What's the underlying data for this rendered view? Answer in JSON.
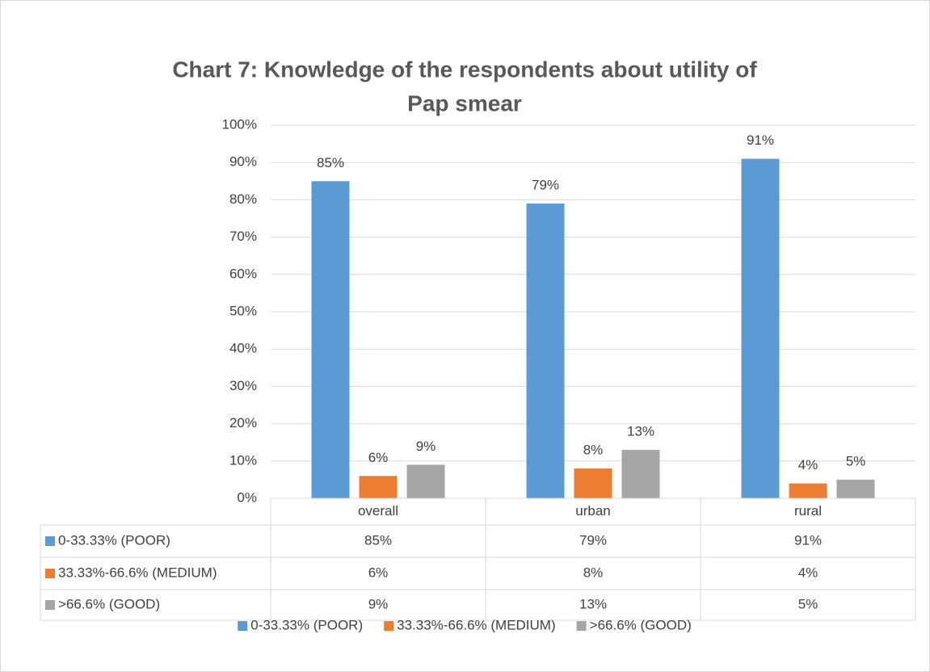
{
  "chart_data": {
    "type": "bar",
    "title": "Chart 7: Knowledge of the respondents about utility of Pap smear",
    "title_lines": [
      "Chart 7: Knowledge of the respondents about utility of",
      "Pap smear"
    ],
    "categories": [
      "overall",
      "urban",
      "rural"
    ],
    "series": [
      {
        "name": "0-33.33% (POOR)",
        "color": "#5b9bd5",
        "values": [
          85,
          79,
          91
        ],
        "value_labels": [
          "85%",
          "79%",
          "91%"
        ]
      },
      {
        "name": "33.33%-66.6% (MEDIUM)",
        "color": "#ed7d31",
        "values": [
          6,
          8,
          4
        ],
        "value_labels": [
          "6%",
          "8%",
          "4%"
        ]
      },
      {
        "name": ">66.6% (GOOD)",
        "color": "#a5a5a5",
        "values": [
          9,
          13,
          5
        ],
        "value_labels": [
          "9%",
          "13%",
          "5%"
        ]
      }
    ],
    "ylim": [
      0,
      100
    ],
    "yticks": [
      {
        "value": 0,
        "label": "0%"
      },
      {
        "value": 10,
        "label": "10%"
      },
      {
        "value": 20,
        "label": "20%"
      },
      {
        "value": 30,
        "label": "30%"
      },
      {
        "value": 40,
        "label": "40%"
      },
      {
        "value": 50,
        "label": "50%"
      },
      {
        "value": 60,
        "label": "60%"
      },
      {
        "value": 70,
        "label": "70%"
      },
      {
        "value": 80,
        "label": "80%"
      },
      {
        "value": 90,
        "label": "90%"
      },
      {
        "value": 100,
        "label": "100%"
      }
    ],
    "grid": true,
    "legend": "bottom",
    "data_table": true
  }
}
